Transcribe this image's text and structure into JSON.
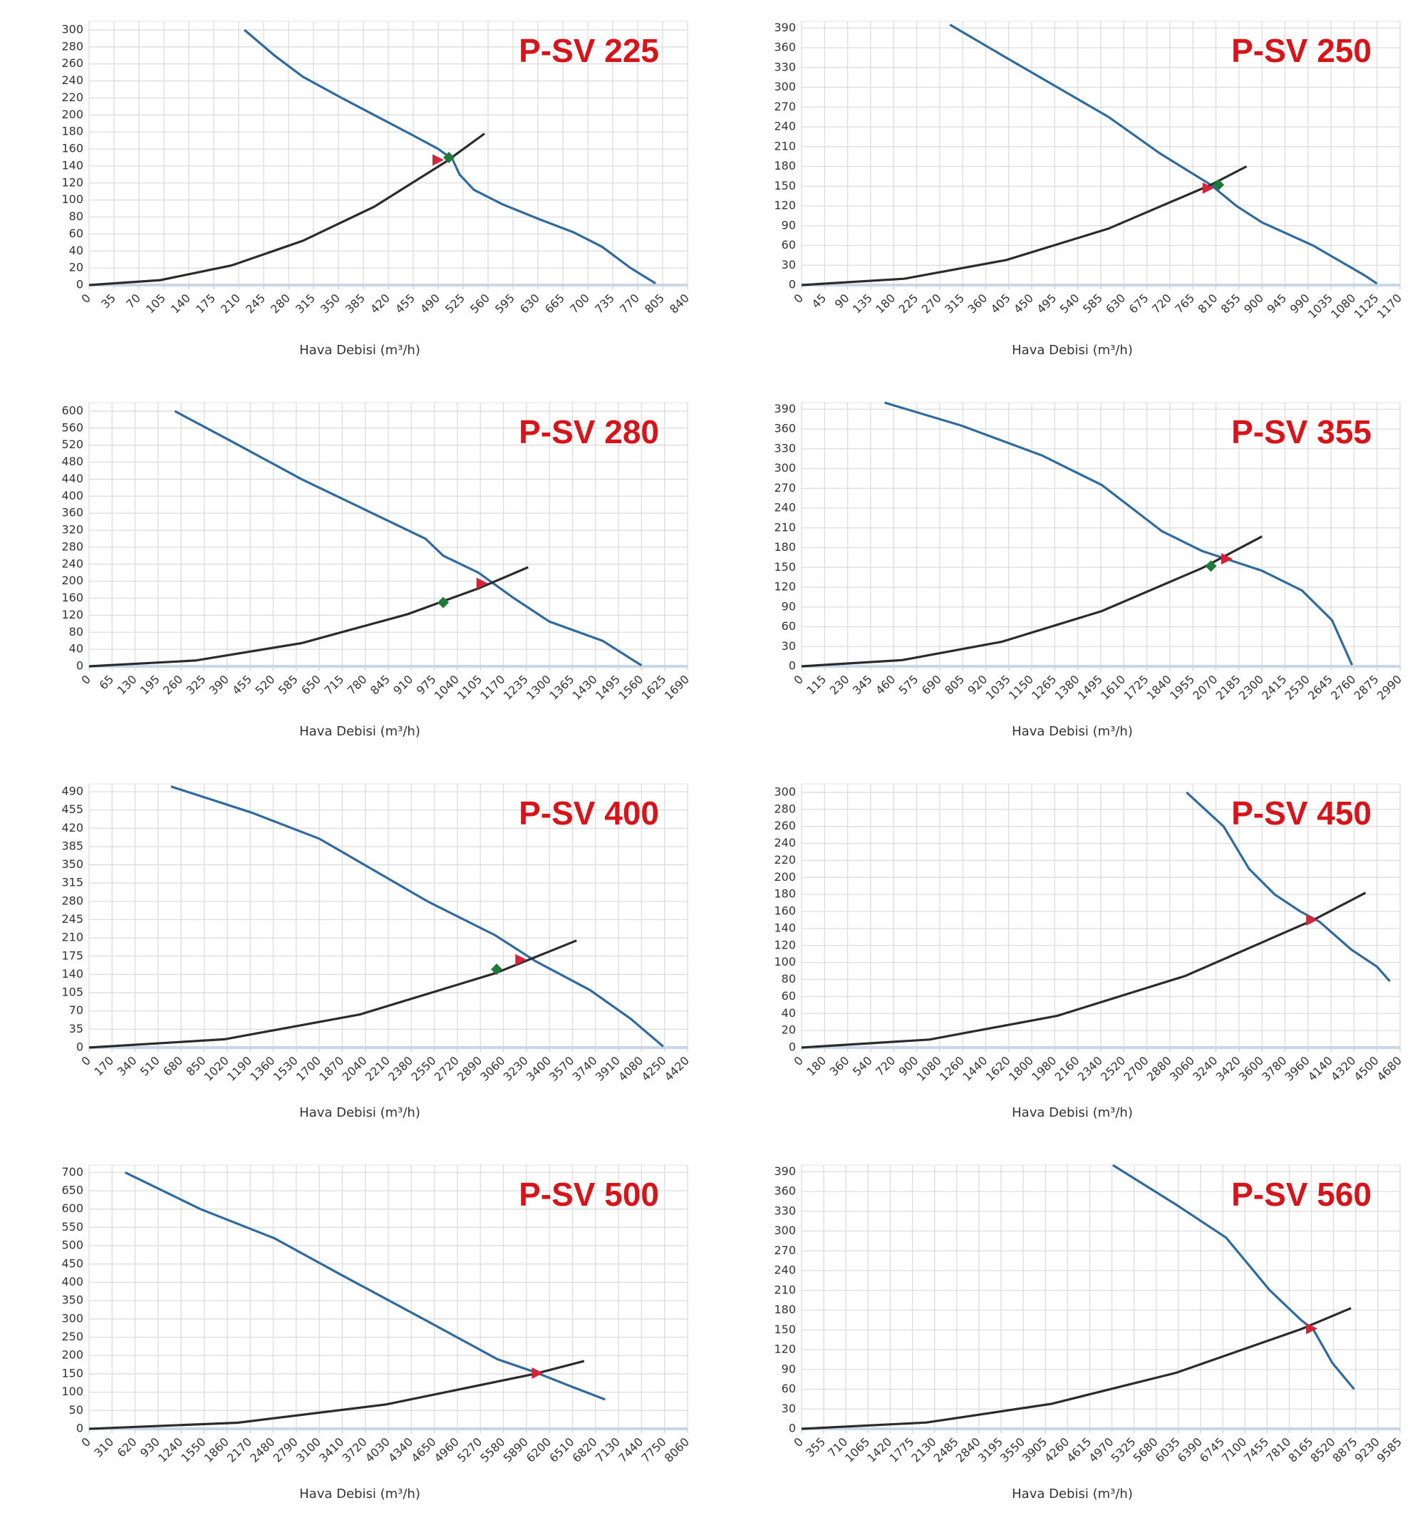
{
  "chart_data": [
    {
      "type": "line",
      "title": "P-SV 225",
      "x_label": "Hava Debisi (m³/h)",
      "grid": true,
      "xlim": [
        0,
        840
      ],
      "xticks": [
        0,
        35,
        70,
        105,
        140,
        175,
        210,
        245,
        280,
        315,
        350,
        385,
        420,
        455,
        490,
        525,
        560,
        595,
        630,
        665,
        700,
        735,
        770,
        805,
        840
      ],
      "ylim": [
        0,
        310
      ],
      "yticks": [
        0,
        20,
        40,
        60,
        80,
        100,
        120,
        140,
        160,
        180,
        200,
        220,
        240,
        260,
        280,
        300
      ],
      "series": [
        {
          "color": "#2e6a9e",
          "x": [
            218,
            260,
            300,
            350,
            400,
            450,
            490,
            510,
            520,
            540,
            580,
            630,
            680,
            720,
            760,
            795
          ],
          "values": [
            300,
            270,
            245,
            222,
            200,
            178,
            160,
            148,
            130,
            112,
            95,
            78,
            62,
            45,
            20,
            2
          ]
        },
        {
          "color": "#2b2b2b",
          "x": [
            0,
            100,
            200,
            300,
            400,
            500,
            555
          ],
          "values": [
            0,
            5.8,
            23,
            52,
            92,
            144.5,
            178
          ]
        }
      ],
      "markers": [
        {
          "x": 490,
          "y": 147,
          "color": "#d6223a",
          "shape": "triangle"
        },
        {
          "x": 505,
          "y": 150,
          "color": "#1f7a3a",
          "shape": "diamond"
        }
      ]
    },
    {
      "type": "line",
      "title": "P-SV 250",
      "x_label": "Hava Debisi (m³/h)",
      "grid": true,
      "xlim": [
        0,
        1170
      ],
      "xticks": [
        0,
        45,
        90,
        135,
        180,
        225,
        270,
        315,
        360,
        405,
        450,
        495,
        540,
        585,
        630,
        675,
        720,
        765,
        810,
        855,
        900,
        945,
        990,
        1035,
        1080,
        1125,
        1170
      ],
      "ylim": [
        0,
        400
      ],
      "yticks": [
        0,
        30,
        60,
        90,
        120,
        150,
        180,
        210,
        240,
        270,
        300,
        330,
        360,
        390
      ],
      "series": [
        {
          "color": "#2e6a9e",
          "x": [
            290,
            400,
            500,
            600,
            700,
            800,
            850,
            900,
            1000,
            1100,
            1125
          ],
          "values": [
            395,
            345,
            300,
            255,
            200,
            152,
            120,
            95,
            60,
            15,
            2
          ]
        },
        {
          "color": "#2b2b2b",
          "x": [
            0,
            200,
            400,
            600,
            800,
            870
          ],
          "values": [
            0,
            9.5,
            38,
            85.6,
            152,
            180
          ]
        }
      ],
      "markers": [
        {
          "x": 795,
          "y": 147,
          "color": "#d6223a",
          "shape": "triangle"
        },
        {
          "x": 815,
          "y": 152,
          "color": "#1f7a3a",
          "shape": "diamond"
        }
      ]
    },
    {
      "type": "line",
      "title": "P-SV 280",
      "x_label": "Hava Debisi (m³/h)",
      "grid": true,
      "xlim": [
        0,
        1690
      ],
      "xticks": [
        0,
        65,
        130,
        195,
        260,
        325,
        390,
        455,
        520,
        585,
        650,
        715,
        780,
        845,
        910,
        975,
        1040,
        1105,
        1170,
        1235,
        1300,
        1365,
        1430,
        1495,
        1560,
        1625,
        1690
      ],
      "ylim": [
        0,
        620
      ],
      "yticks": [
        0,
        40,
        80,
        120,
        160,
        200,
        240,
        280,
        320,
        360,
        400,
        440,
        480,
        520,
        560,
        600
      ],
      "series": [
        {
          "color": "#2e6a9e",
          "x": [
            242,
            400,
            600,
            800,
            950,
            1000,
            1100,
            1200,
            1300,
            1450,
            1560
          ],
          "values": [
            600,
            530,
            440,
            360,
            300,
            260,
            220,
            160,
            105,
            60,
            2
          ]
        },
        {
          "color": "#2b2b2b",
          "x": [
            0,
            300,
            600,
            900,
            1100,
            1240
          ],
          "values": [
            0,
            13.6,
            54.5,
            122.7,
            183.3,
            233
          ]
        }
      ],
      "markers": [
        {
          "x": 1110,
          "y": 195,
          "color": "#d6223a",
          "shape": "triangle"
        },
        {
          "x": 1000,
          "y": 150,
          "color": "#1f7a3a",
          "shape": "diamond"
        }
      ]
    },
    {
      "type": "line",
      "title": "P-SV 355",
      "x_label": "Hava Debisi (m³/h)",
      "grid": true,
      "xlim": [
        0,
        2990
      ],
      "xticks": [
        0,
        115,
        230,
        345,
        460,
        575,
        690,
        805,
        920,
        1035,
        1150,
        1265,
        1380,
        1495,
        1610,
        1725,
        1840,
        1955,
        2070,
        2185,
        2300,
        2415,
        2530,
        2645,
        2760,
        2875,
        2990
      ],
      "ylim": [
        0,
        400
      ],
      "yticks": [
        0,
        30,
        60,
        90,
        120,
        150,
        180,
        210,
        240,
        270,
        300,
        330,
        360,
        390
      ],
      "series": [
        {
          "color": "#2e6a9e",
          "x": [
            415,
            800,
            1200,
            1500,
            1800,
            2000,
            2100,
            2300,
            2500,
            2650,
            2750
          ],
          "values": [
            400,
            365,
            320,
            275,
            205,
            175,
            165,
            145,
            115,
            70,
            2
          ]
        },
        {
          "color": "#2b2b2b",
          "x": [
            0,
            500,
            1000,
            1500,
            2000,
            2300
          ],
          "values": [
            0,
            9.3,
            37.2,
            83.8,
            148.9,
            197
          ]
        }
      ],
      "markers": [
        {
          "x": 2125,
          "y": 163,
          "color": "#d6223a",
          "shape": "triangle"
        },
        {
          "x": 2045,
          "y": 152,
          "color": "#1f7a3a",
          "shape": "diamond"
        }
      ]
    },
    {
      "type": "line",
      "title": "P-SV 400",
      "x_label": "Hava Debisi (m³/h)",
      "grid": true,
      "xlim": [
        0,
        4420
      ],
      "xticks": [
        0,
        170,
        340,
        510,
        680,
        850,
        1020,
        1190,
        1360,
        1530,
        1700,
        1870,
        2040,
        2210,
        2380,
        2550,
        2720,
        2890,
        3060,
        3230,
        3400,
        3570,
        3740,
        3910,
        4080,
        4250,
        4420
      ],
      "ylim": [
        0,
        505
      ],
      "yticks": [
        0,
        35,
        70,
        105,
        140,
        175,
        210,
        245,
        280,
        315,
        350,
        385,
        420,
        455,
        490
      ],
      "series": [
        {
          "color": "#2e6a9e",
          "x": [
            605,
            1200,
            1700,
            2100,
            2500,
            3000,
            3300,
            3700,
            4000,
            4240
          ],
          "values": [
            500,
            450,
            400,
            340,
            280,
            215,
            165,
            110,
            55,
            2
          ]
        },
        {
          "color": "#2b2b2b",
          "x": [
            0,
            1000,
            2000,
            3000,
            3600
          ],
          "values": [
            0,
            15.8,
            63.3,
            142.4,
            205
          ]
        }
      ],
      "markers": [
        {
          "x": 3190,
          "y": 168,
          "color": "#d6223a",
          "shape": "triangle"
        },
        {
          "x": 3010,
          "y": 150,
          "color": "#1f7a3a",
          "shape": "diamond"
        }
      ]
    },
    {
      "type": "line",
      "title": "P-SV 450",
      "x_label": "Hava Debisi (m³/h)",
      "grid": true,
      "xlim": [
        0,
        4680
      ],
      "xticks": [
        0,
        180,
        360,
        540,
        720,
        900,
        1080,
        1260,
        1440,
        1620,
        1800,
        1980,
        2160,
        2340,
        2520,
        2700,
        2880,
        3060,
        3240,
        3420,
        3600,
        3780,
        3960,
        4140,
        4320,
        4500,
        4680
      ],
      "ylim": [
        0,
        310
      ],
      "yticks": [
        0,
        20,
        40,
        60,
        80,
        100,
        120,
        140,
        160,
        180,
        200,
        220,
        240,
        260,
        280,
        300
      ],
      "series": [
        {
          "color": "#2e6a9e",
          "x": [
            3010,
            3300,
            3500,
            3700,
            3900,
            4050,
            4300,
            4500,
            4600
          ],
          "values": [
            300,
            260,
            210,
            180,
            160,
            148,
            115,
            95,
            78
          ]
        },
        {
          "color": "#2b2b2b",
          "x": [
            0,
            1000,
            2000,
            3000,
            4000,
            4410
          ],
          "values": [
            0,
            9.4,
            37.4,
            84.2,
            149.8,
            182
          ]
        }
      ],
      "markers": [
        {
          "x": 3990,
          "y": 150,
          "color": "#d6223a",
          "shape": "triangle"
        }
      ]
    },
    {
      "type": "line",
      "title": "P-SV 500",
      "x_label": "Hava Debisi (m³/h)",
      "grid": true,
      "xlim": [
        0,
        8060
      ],
      "xticks": [
        0,
        310,
        620,
        930,
        1240,
        1550,
        1860,
        2170,
        2480,
        2790,
        3100,
        3410,
        3720,
        4030,
        4340,
        4650,
        4960,
        5270,
        5580,
        5890,
        6200,
        6510,
        6820,
        7130,
        7440,
        7750,
        8060
      ],
      "ylim": [
        0,
        720
      ],
      "yticks": [
        0,
        50,
        100,
        150,
        200,
        250,
        300,
        350,
        400,
        450,
        500,
        550,
        600,
        650,
        700
      ],
      "series": [
        {
          "color": "#2e6a9e",
          "x": [
            486,
            1500,
            2500,
            3400,
            4500,
            5500,
            6000,
            6500,
            6950
          ],
          "values": [
            700,
            600,
            520,
            420,
            300,
            190,
            155,
            115,
            80
          ]
        },
        {
          "color": "#2b2b2b",
          "x": [
            0,
            2000,
            4000,
            6000,
            6667
          ],
          "values": [
            0,
            16.6,
            66.6,
            149.8,
            185
          ]
        }
      ],
      "markers": [
        {
          "x": 6040,
          "y": 152,
          "color": "#d6223a",
          "shape": "triangle"
        }
      ]
    },
    {
      "type": "line",
      "title": "P-SV 560",
      "x_label": "Hava Debisi (m³/h)",
      "grid": true,
      "xlim": [
        0,
        9585
      ],
      "xticks": [
        0,
        355,
        710,
        1065,
        1420,
        1775,
        2130,
        2485,
        2840,
        3195,
        3550,
        3905,
        4260,
        4615,
        4970,
        5325,
        5680,
        6035,
        6390,
        6745,
        7100,
        7455,
        7810,
        8165,
        8520,
        8875,
        9230,
        9585
      ],
      "ylim": [
        0,
        400
      ],
      "yticks": [
        0,
        30,
        60,
        90,
        120,
        150,
        180,
        210,
        240,
        270,
        300,
        330,
        360,
        390
      ],
      "series": [
        {
          "color": "#2e6a9e",
          "x": [
            4985,
            6000,
            6800,
            7500,
            8000,
            8200,
            8500,
            8850
          ],
          "values": [
            400,
            340,
            290,
            210,
            165,
            150,
            100,
            60
          ]
        },
        {
          "color": "#2b2b2b",
          "x": [
            0,
            2000,
            4000,
            6000,
            8000,
            8800
          ],
          "values": [
            0,
            9.5,
            37.8,
            85,
            151.2,
            183
          ]
        }
      ],
      "markers": [
        {
          "x": 8170,
          "y": 152,
          "color": "#d6223a",
          "shape": "triangle"
        }
      ]
    }
  ]
}
